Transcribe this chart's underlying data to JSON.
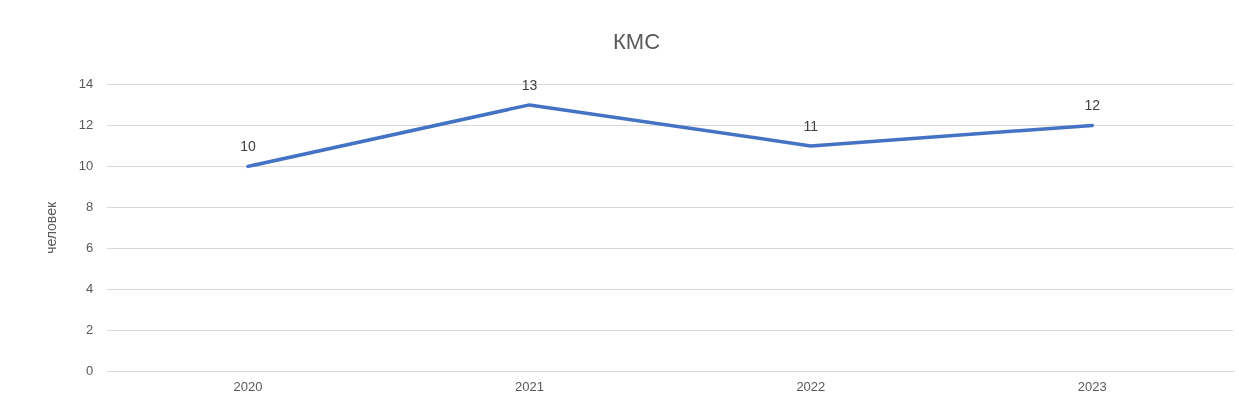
{
  "chart_data": {
    "type": "line",
    "title": "КМС",
    "ylabel": "человек",
    "categories": [
      "2020",
      "2021",
      "2022",
      "2023"
    ],
    "series": [
      {
        "color": "#4472c4",
        "values": [
          10,
          13,
          11,
          12
        ]
      }
    ],
    "ylim": [
      0,
      14
    ],
    "yticks": [
      0,
      2,
      4,
      6,
      8,
      10,
      12,
      14
    ],
    "grid": "y",
    "legend": false,
    "marker": "none",
    "line_style": "solid",
    "data_labels": true
  }
}
